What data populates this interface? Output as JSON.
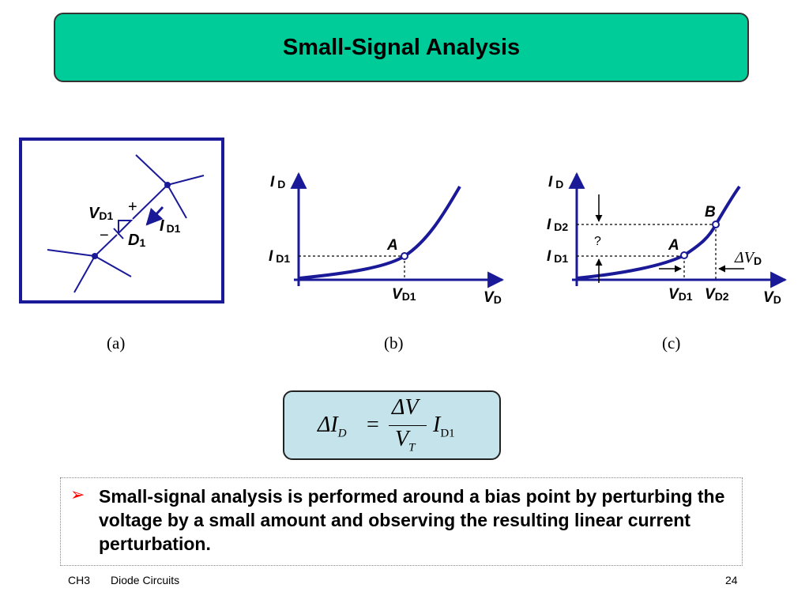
{
  "slide": {
    "title": "Small-Signal Analysis",
    "footer_chapter": "CH3",
    "footer_subject": "Diode Circuits",
    "page_number": "24"
  },
  "figure_a": {
    "caption": "(a)",
    "v_label": "V",
    "v_sub": "D1",
    "plus": "+",
    "minus": "−",
    "d_label": "D",
    "d_sub": "1",
    "i_label": "I",
    "i_sub": "D1"
  },
  "figure_b": {
    "caption": "(b)",
    "y_axis": "I",
    "y_axis_sub": "D",
    "x_axis": "V",
    "x_axis_sub": "D",
    "id1": "I",
    "id1_sub": "D1",
    "vd1": "V",
    "vd1_sub": "D1",
    "point_a": "A"
  },
  "figure_c": {
    "caption": "(c)",
    "y_axis": "I",
    "y_axis_sub": "D",
    "x_axis": "V",
    "x_axis_sub": "D",
    "id1": "I",
    "id1_sub": "D1",
    "id2": "I",
    "id2_sub": "D2",
    "vd1": "V",
    "vd1_sub": "D1",
    "vd2": "V",
    "vd2_sub": "D2",
    "point_a": "A",
    "point_b": "B",
    "question": "?",
    "delta_v": "ΔV",
    "delta_v_sub": "D"
  },
  "formula": {
    "delta_i": "ΔI",
    "delta_i_sub": "D",
    "equals": "=",
    "numerator": "ΔV",
    "denominator": "V",
    "denominator_sub": "T",
    "i_factor": "I",
    "i_factor_sub": "D1"
  },
  "bullet": {
    "text": "Small-signal analysis is performed around a bias point by perturbing the voltage by a small amount and observing the resulting linear current perturbation."
  },
  "colors": {
    "title_bg": "#00cc99",
    "figure_blue": "#1a1a99",
    "formula_bg": "#c5e3ea",
    "bullet_arrow": "#ff0000"
  }
}
